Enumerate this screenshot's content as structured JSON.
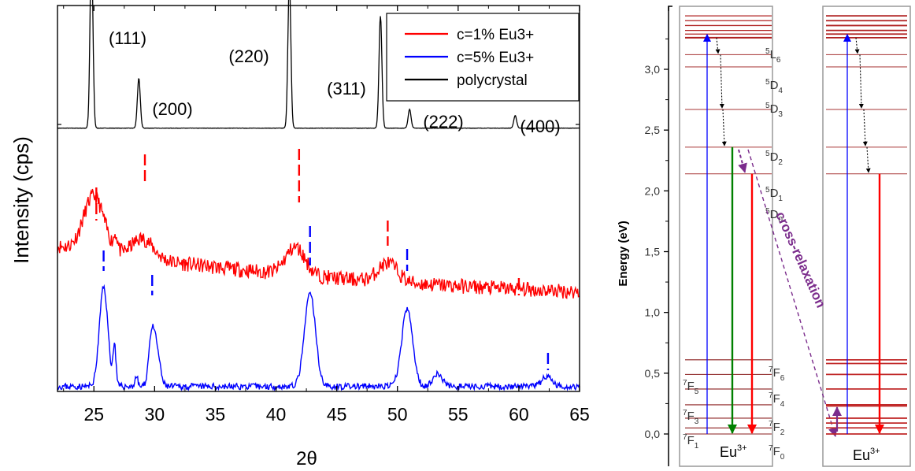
{
  "colors": {
    "red": "#ff0000",
    "blue": "#0000ff",
    "black": "#000000",
    "green": "#008000",
    "purple": "#7b2c8c",
    "level_red": "#b02020"
  },
  "chart_data": [
    {
      "type": "line",
      "xlabel": "2θ",
      "ylabel": "Intensity (cps)",
      "xlim": [
        22,
        65
      ],
      "xticks": [
        "25",
        "30",
        "35",
        "40",
        "45",
        "50",
        "55",
        "60",
        "65"
      ],
      "legend": {
        "position": "top-right",
        "entries": [
          "c=1% Eu3+",
          "c=5% Eu3+",
          "polycrystal"
        ]
      },
      "series": [
        {
          "name": "polycrystal",
          "color": "#000000",
          "baseline": 0.85,
          "noise": 0.015,
          "peaks": [
            [
              24.8,
              14.5,
              0.12
            ],
            [
              28.7,
              4.0,
              0.12
            ],
            [
              41.1,
              12.0,
              0.12
            ],
            [
              48.6,
              9.0,
              0.12
            ],
            [
              51.0,
              1.5,
              0.12
            ],
            [
              59.7,
              1.0,
              0.12
            ]
          ]
        },
        {
          "name": "c=1% Eu3+",
          "color": "#ff0000",
          "base_start": 6.7,
          "base_end": 3.0,
          "noise": 0.6,
          "peaks": [
            [
              25.0,
              4.5,
              0.85
            ],
            [
              26.8,
              1.2,
              0.15
            ],
            [
              29.0,
              1.6,
              0.9
            ],
            [
              41.6,
              2.2,
              0.8
            ],
            [
              49.2,
              1.5,
              0.8
            ]
          ],
          "markers": [
            25.2,
            29.2,
            41.9,
            49.2,
            60.0
          ]
        },
        {
          "name": "c=5% Eu3+",
          "color": "#0000ff",
          "baseline": 0.3,
          "noise": 0.25,
          "peaks": [
            [
              25.8,
              8.0,
              0.35
            ],
            [
              26.7,
              3.2,
              0.12
            ],
            [
              28.5,
              0.8,
              0.12
            ],
            [
              29.7,
              3.0,
              0.22
            ],
            [
              30.1,
              3.4,
              0.3
            ],
            [
              42.8,
              7.5,
              0.45
            ],
            [
              50.8,
              6.2,
              0.45
            ],
            [
              53.3,
              1.0,
              0.4
            ],
            [
              62.3,
              0.8,
              0.4
            ]
          ],
          "markers": [
            25.8,
            29.8,
            42.8,
            50.8,
            62.4
          ]
        }
      ],
      "annotations": [
        {
          "text": "(111)",
          "x": 25.1
        },
        {
          "text": "(200)",
          "x": 29.5
        },
        {
          "text": "(220)",
          "x": 40.3
        },
        {
          "text": "(311)",
          "x": 45.6
        },
        {
          "text": "(222)",
          "x": 53.5
        },
        {
          "text": "(400)",
          "x": 62.7
        }
      ]
    },
    {
      "type": "diagram",
      "ylabel": "Energy (eV)",
      "ylim": [
        -0.15,
        3.5
      ],
      "yticks": [
        "0,0",
        "0,5",
        "1,0",
        "1,5",
        "2,0",
        "2,5",
        "3,0"
      ],
      "left_panel": {
        "ion_label": "Eu",
        "ion_charge": "3+",
        "levels": [
          {
            "name": "L",
            "sup": "5",
            "sub": "6",
            "energy": 3.26
          },
          {
            "name": "D",
            "sup": "5",
            "sub": "4",
            "energy": 3.12
          },
          {
            "name": "D",
            "sup": "5",
            "sub": "3",
            "energy": 3.02
          },
          {
            "name": "D",
            "sup": "5",
            "sub": "2",
            "energy": 2.67
          },
          {
            "name": "D",
            "sup": "5",
            "sub": "1",
            "energy": 2.36
          },
          {
            "name": "D",
            "sup": "5",
            "sub": "0",
            "energy": 2.14
          },
          {
            "name": "F",
            "sup": "7",
            "sub": "6",
            "energy": 0.61
          },
          {
            "name": "F",
            "sup": "7",
            "sub": "5",
            "energy": 0.49
          },
          {
            "name": "F",
            "sup": "7",
            "sub": "4",
            "energy": 0.37
          },
          {
            "name": "F",
            "sup": "7",
            "sub": "3",
            "energy": 0.24
          },
          {
            "name": "F",
            "sup": "7",
            "sub": "2",
            "energy": 0.13
          },
          {
            "name": "F",
            "sup": "7",
            "sub": "1",
            "energy": 0.05
          },
          {
            "name": "F",
            "sup": "7",
            "sub": "0",
            "energy": 0.0
          }
        ],
        "extra_upper_levels": [
          3.29,
          3.32,
          3.36,
          3.4,
          3.44
        ],
        "cross_relaxation_label": "cross-relaxation"
      },
      "right_panel": {
        "ion_label": "Eu",
        "ion_charge": "3+",
        "levels": [
          3.44,
          3.4,
          3.36,
          3.32,
          3.29,
          3.26,
          3.12,
          3.02,
          2.67,
          2.36,
          2.14,
          0.61,
          0.58,
          0.49,
          0.37,
          0.24,
          0.23,
          0.13,
          0.09,
          0.05,
          0.0
        ]
      }
    }
  ]
}
